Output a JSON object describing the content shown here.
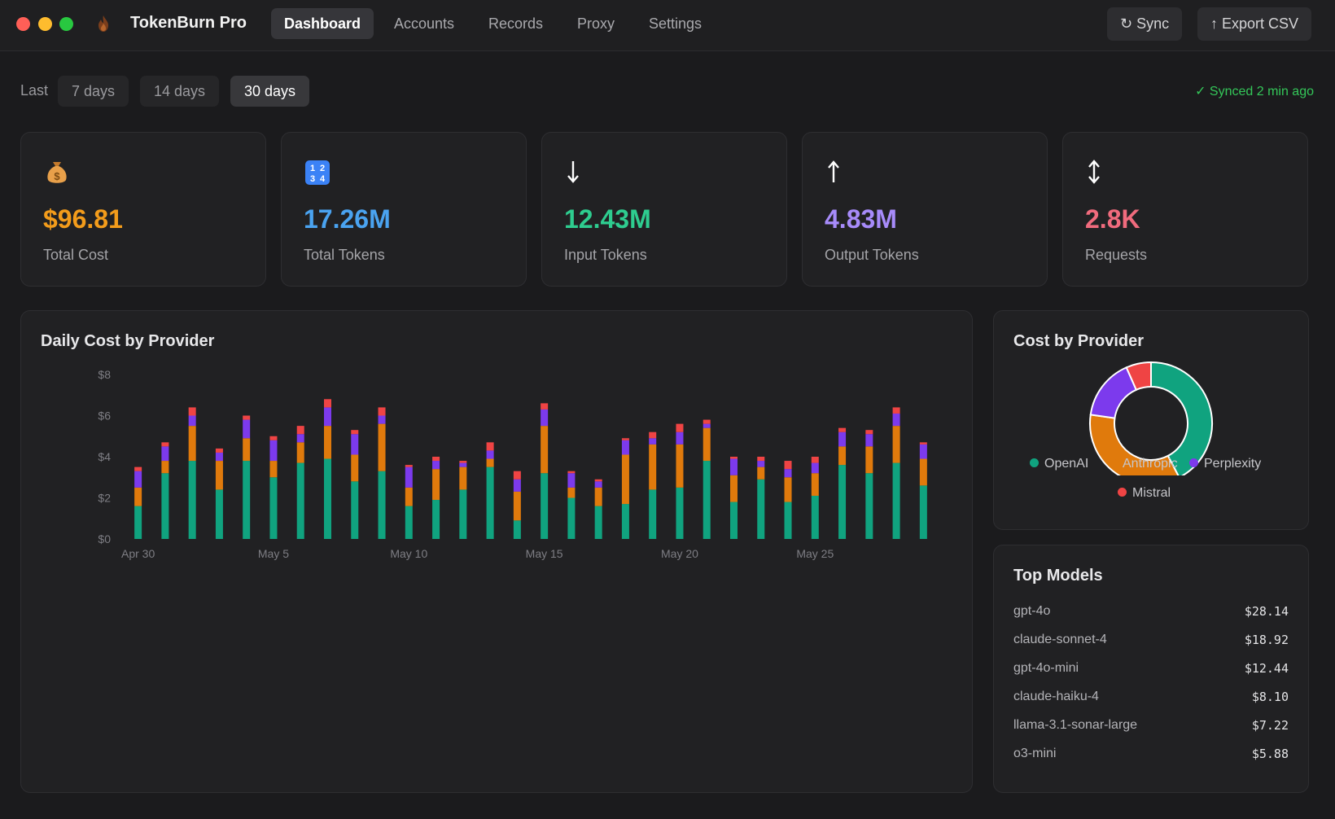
{
  "app": {
    "name": "TokenBurn Pro"
  },
  "nav": {
    "tabs": [
      "Dashboard",
      "Accounts",
      "Records",
      "Proxy",
      "Settings"
    ],
    "active": "Dashboard"
  },
  "toolbar": {
    "sync_label": "↻ Sync",
    "export_label": "↑ Export CSV"
  },
  "range": {
    "label": "Last",
    "options": [
      "7 days",
      "14 days",
      "30 days"
    ],
    "active": "30 days"
  },
  "sync_status": "✓ Synced 2 min ago",
  "stats": [
    {
      "icon": "money-bag-icon",
      "value": "$96.81",
      "label": "Total Cost",
      "color": "#f39c1b"
    },
    {
      "icon": "numbers-icon",
      "value": "17.26M",
      "label": "Total Tokens",
      "color": "#4aa3f0"
    },
    {
      "icon": "arrow-down-icon",
      "value": "12.43M",
      "label": "Input Tokens",
      "color": "#2ecc8f"
    },
    {
      "icon": "arrow-up-icon",
      "value": "4.83M",
      "label": "Output Tokens",
      "color": "#a78bfa"
    },
    {
      "icon": "arrow-updown-icon",
      "value": "2.8K",
      "label": "Requests",
      "color": "#f06b7d"
    }
  ],
  "daily_chart": {
    "title": "Daily Cost by Provider"
  },
  "provider_chart": {
    "title": "Cost by Provider"
  },
  "top_models": {
    "title": "Top Models",
    "items": [
      {
        "name": "gpt-4o",
        "cost": "$28.14"
      },
      {
        "name": "claude-sonnet-4",
        "cost": "$18.92"
      },
      {
        "name": "gpt-4o-mini",
        "cost": "$12.44"
      },
      {
        "name": "claude-haiku-4",
        "cost": "$8.10"
      },
      {
        "name": "llama-3.1-sonar-large",
        "cost": "$7.22"
      },
      {
        "name": "o3-mini",
        "cost": "$5.88"
      }
    ]
  },
  "chart_data": [
    {
      "type": "bar",
      "stacked": true,
      "title": "Daily Cost by Provider",
      "xlabel": "",
      "ylabel": "",
      "ylim": [
        0,
        8
      ],
      "yticks": [
        "$0",
        "$2",
        "$4",
        "$6",
        "$8"
      ],
      "ytick_values": [
        0,
        2,
        4,
        6,
        8
      ],
      "xtick_labels": [
        "Apr 30",
        "May 5",
        "May 10",
        "May 15",
        "May 20",
        "May 25"
      ],
      "xtick_index": [
        0,
        5,
        10,
        15,
        20,
        25
      ],
      "categories": [
        "Apr 30",
        "May 1",
        "May 2",
        "May 3",
        "May 4",
        "May 5",
        "May 6",
        "May 7",
        "May 8",
        "May 9",
        "May 10",
        "May 11",
        "May 12",
        "May 13",
        "May 14",
        "May 15",
        "May 16",
        "May 17",
        "May 18",
        "May 19",
        "May 20",
        "May 21",
        "May 22",
        "May 23",
        "May 24",
        "May 25",
        "May 26",
        "May 27",
        "May 28",
        "May 29"
      ],
      "series": [
        {
          "name": "OpenAI",
          "color": "#10a37f",
          "values": [
            1.6,
            3.2,
            3.8,
            2.4,
            3.8,
            3.0,
            3.7,
            3.9,
            2.8,
            3.3,
            1.6,
            1.9,
            2.4,
            3.5,
            0.9,
            3.2,
            2.0,
            1.6,
            1.7,
            2.4,
            2.5,
            3.8,
            1.8,
            2.9,
            1.8,
            2.1,
            3.6,
            3.2,
            3.7,
            2.6
          ]
        },
        {
          "name": "Anthropic",
          "color": "#e07a0c",
          "values": [
            0.9,
            0.6,
            1.7,
            1.4,
            1.1,
            0.8,
            1.0,
            1.6,
            1.3,
            2.3,
            0.9,
            1.5,
            1.1,
            0.4,
            1.4,
            2.3,
            0.5,
            0.9,
            2.4,
            2.2,
            2.1,
            1.6,
            1.3,
            0.6,
            1.2,
            1.1,
            0.9,
            1.3,
            1.8,
            1.3
          ]
        },
        {
          "name": "Perplexity",
          "color": "#7c3aed",
          "values": [
            0.8,
            0.7,
            0.5,
            0.4,
            0.9,
            1.0,
            0.4,
            0.9,
            1.0,
            0.4,
            1.0,
            0.4,
            0.2,
            0.4,
            0.6,
            0.8,
            0.7,
            0.3,
            0.7,
            0.3,
            0.6,
            0.2,
            0.8,
            0.3,
            0.4,
            0.5,
            0.7,
            0.6,
            0.6,
            0.7
          ]
        },
        {
          "name": "Mistral",
          "color": "#ef4444",
          "values": [
            0.2,
            0.2,
            0.4,
            0.2,
            0.2,
            0.2,
            0.4,
            0.4,
            0.2,
            0.4,
            0.1,
            0.2,
            0.1,
            0.4,
            0.4,
            0.3,
            0.1,
            0.1,
            0.1,
            0.3,
            0.4,
            0.2,
            0.1,
            0.2,
            0.4,
            0.3,
            0.2,
            0.2,
            0.3,
            0.1
          ]
        }
      ]
    },
    {
      "type": "pie",
      "donut": true,
      "title": "Cost by Provider",
      "legend": "bottom",
      "series": [
        {
          "name": "OpenAI",
          "value": 41.0,
          "color": "#10a37f"
        },
        {
          "name": "Anthropic",
          "value": 33.8,
          "color": "#e07a0c"
        },
        {
          "name": "Perplexity",
          "value": 15.6,
          "color": "#7c3aed"
        },
        {
          "name": "Mistral",
          "value": 6.4,
          "color": "#ef4444"
        }
      ]
    }
  ]
}
